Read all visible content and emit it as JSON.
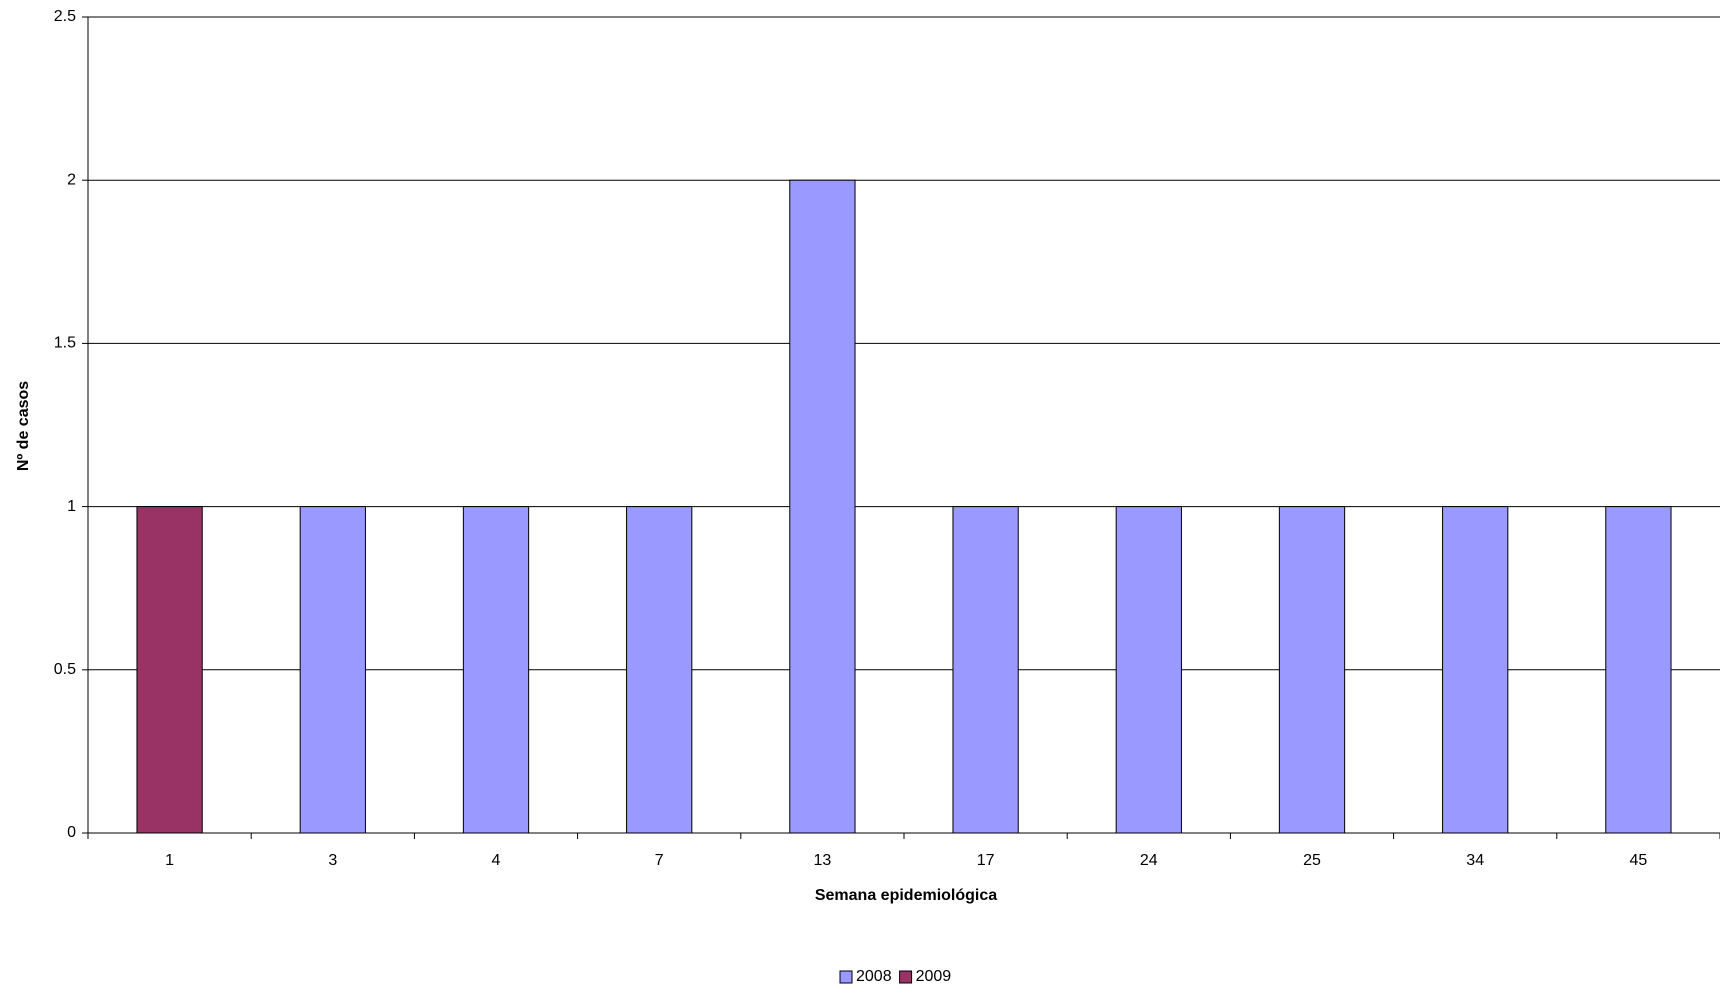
{
  "chart_data": {
    "type": "bar",
    "stacked": true,
    "x_label": "Semana epidemiológica",
    "y_label": "Nº de casos",
    "categories": [
      "1",
      "3",
      "4",
      "7",
      "13",
      "17",
      "24",
      "25",
      "34",
      "45"
    ],
    "series": [
      {
        "name": "2008",
        "color": "#9999ff",
        "values": [
          null,
          1,
          1,
          1,
          2,
          1,
          1,
          1,
          1,
          1
        ]
      },
      {
        "name": "2009",
        "color": "#993366",
        "values": [
          1,
          null,
          null,
          null,
          null,
          null,
          null,
          null,
          null,
          null
        ]
      }
    ],
    "ylim": [
      0,
      2.5
    ],
    "yticks": [
      0,
      0.5,
      1,
      1.5,
      2,
      2.5
    ],
    "grid": true,
    "legend": "bottom"
  }
}
